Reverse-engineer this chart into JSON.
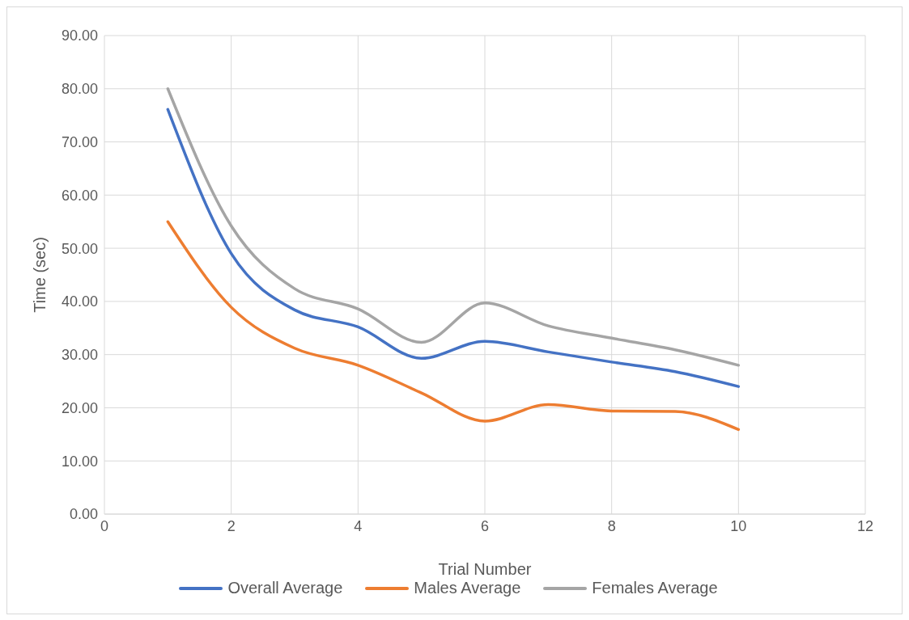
{
  "chart_data": {
    "type": "line",
    "xlabel": "Trial Number",
    "ylabel": "Time (sec)",
    "xlim": [
      0,
      12
    ],
    "xticks": [
      0,
      2,
      4,
      6,
      8,
      10,
      12
    ],
    "ylim": [
      0,
      90
    ],
    "yticks": [
      {
        "value": 0,
        "label": "0.00"
      },
      {
        "value": 10,
        "label": "10.00"
      },
      {
        "value": 20,
        "label": "20.00"
      },
      {
        "value": 30,
        "label": "30.00"
      },
      {
        "value": 40,
        "label": "40.00"
      },
      {
        "value": 50,
        "label": "50.00"
      },
      {
        "value": 60,
        "label": "60.00"
      },
      {
        "value": 70,
        "label": "70.00"
      },
      {
        "value": 80,
        "label": "80.00"
      },
      {
        "value": 90,
        "label": "90.00"
      }
    ],
    "x": [
      1,
      2,
      3,
      4,
      5,
      6,
      7,
      8,
      9,
      10
    ],
    "series": [
      {
        "name": "Overall Average",
        "color": "#4472c4",
        "values": [
          76.1,
          49.0,
          38.4,
          35.2,
          29.3,
          32.5,
          30.5,
          28.6,
          26.8,
          24.0
        ]
      },
      {
        "name": "Males Average",
        "color": "#ed7d31",
        "values": [
          55.0,
          38.9,
          31.2,
          28.0,
          22.8,
          17.5,
          20.6,
          19.4,
          19.3,
          15.9
        ]
      },
      {
        "name": "Females Average",
        "color": "#a5a5a5",
        "values": [
          80.0,
          54.2,
          42.4,
          38.6,
          32.3,
          39.7,
          35.4,
          33.1,
          30.9,
          28.0
        ]
      }
    ],
    "grid": true,
    "legend": "bottom",
    "marker": "none",
    "line_style": "solid"
  }
}
